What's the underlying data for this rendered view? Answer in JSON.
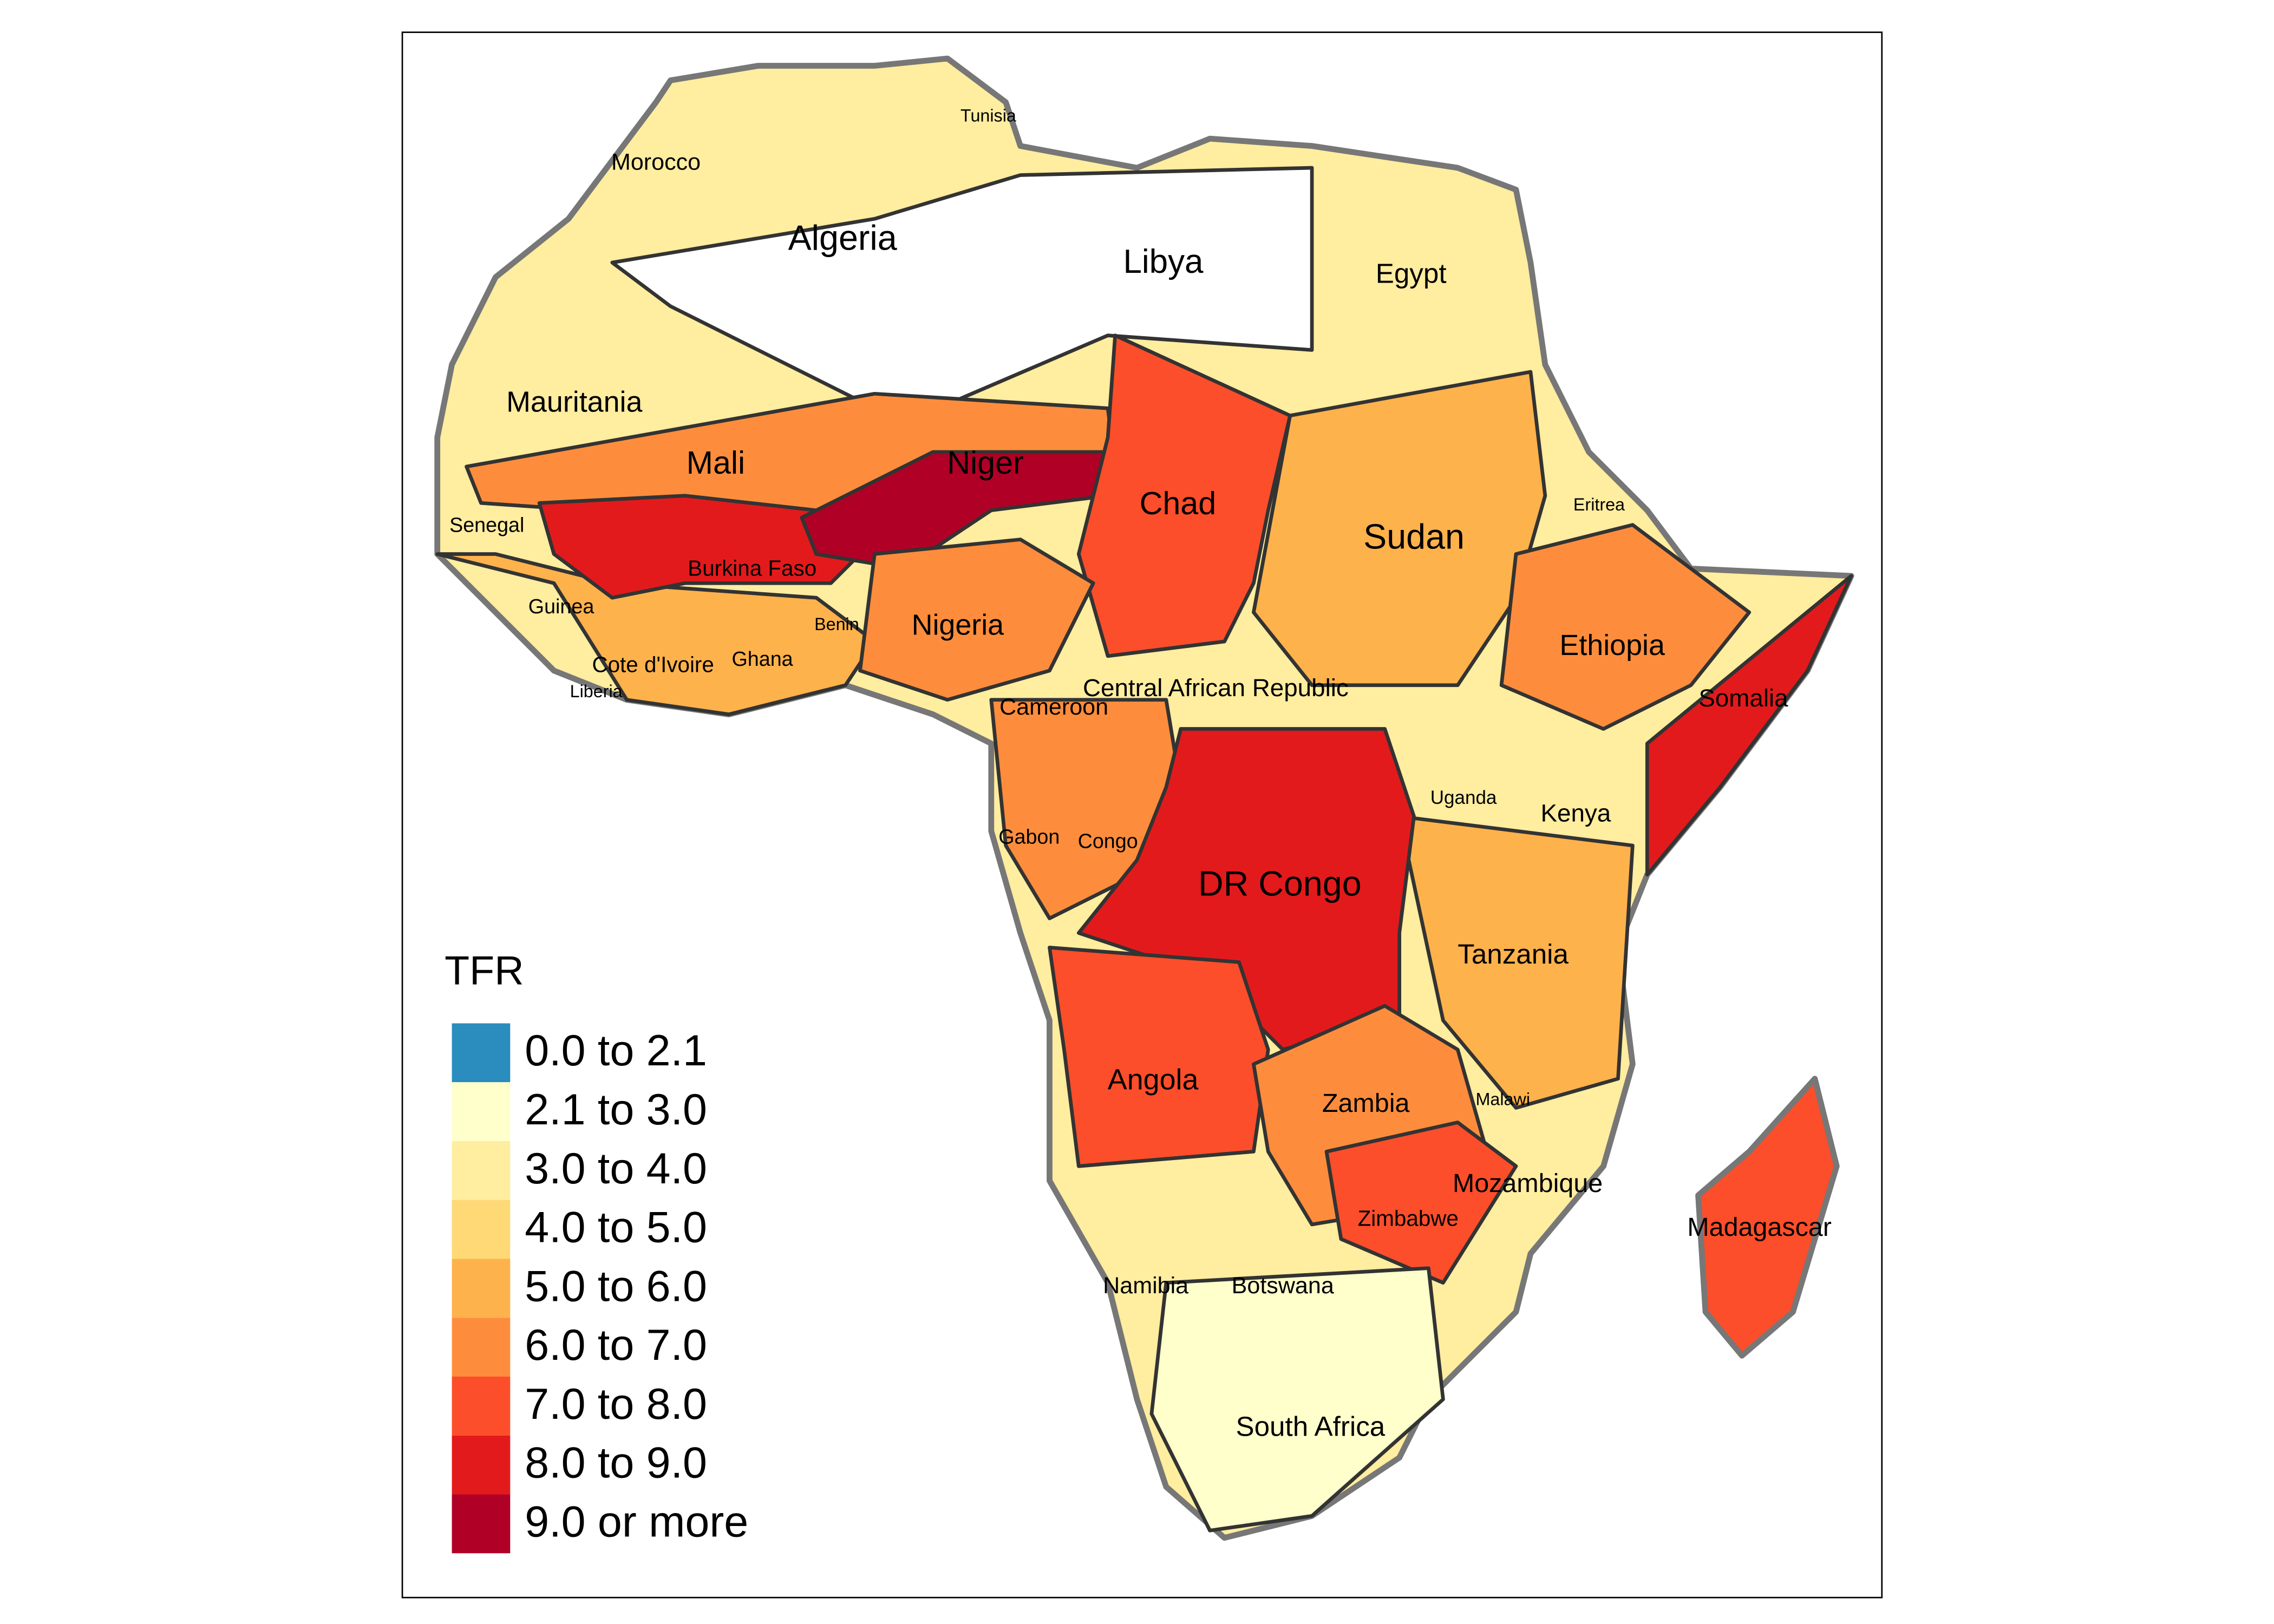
{
  "legend": {
    "title": "TFR",
    "items": [
      {
        "label": "0.0 to 2.1",
        "color": "#2b8cbe"
      },
      {
        "label": "2.1 to 3.0",
        "color": "#ffffcc"
      },
      {
        "label": "3.0 to 4.0",
        "color": "#ffeda0"
      },
      {
        "label": "4.0 to 5.0",
        "color": "#fed976"
      },
      {
        "label": "5.0 to 6.0",
        "color": "#feb24c"
      },
      {
        "label": "6.0 to 7.0",
        "color": "#fd8d3c"
      },
      {
        "label": "7.0 to 8.0",
        "color": "#fc4e2a"
      },
      {
        "label": "8.0 to 9.0",
        "color": "#e31a1c"
      },
      {
        "label": "9.0 or more",
        "color": "#b10026"
      }
    ]
  },
  "countries": [
    {
      "label": "Tunisia"
    },
    {
      "label": "Morocco"
    },
    {
      "label": "Algeria"
    },
    {
      "label": "Libya"
    },
    {
      "label": "Egypt"
    },
    {
      "label": "Mauritania"
    },
    {
      "label": "Mali"
    },
    {
      "label": "Niger"
    },
    {
      "label": "Chad"
    },
    {
      "label": "Sudan"
    },
    {
      "label": "Eritrea"
    },
    {
      "label": "Senegal"
    },
    {
      "label": "Burkina Faso"
    },
    {
      "label": "Guinea"
    },
    {
      "label": "Benin"
    },
    {
      "label": "Nigeria"
    },
    {
      "label": "Ethiopia"
    },
    {
      "label": "Somalia"
    },
    {
      "label": "Cote d'Ivoire"
    },
    {
      "label": "Ghana"
    },
    {
      "label": "Liberia"
    },
    {
      "label": "Central African Republic"
    },
    {
      "label": "Cameroon"
    },
    {
      "label": "Uganda"
    },
    {
      "label": "Kenya"
    },
    {
      "label": "Gabon"
    },
    {
      "label": "Congo"
    },
    {
      "label": "DR Congo"
    },
    {
      "label": "Tanzania"
    },
    {
      "label": "Angola"
    },
    {
      "label": "Zambia"
    },
    {
      "label": "Malawi"
    },
    {
      "label": "Mozambique"
    },
    {
      "label": "Madagascar"
    },
    {
      "label": "Zimbabwe"
    },
    {
      "label": "Namibia"
    },
    {
      "label": "Botswana"
    },
    {
      "label": "South Africa"
    }
  ]
}
